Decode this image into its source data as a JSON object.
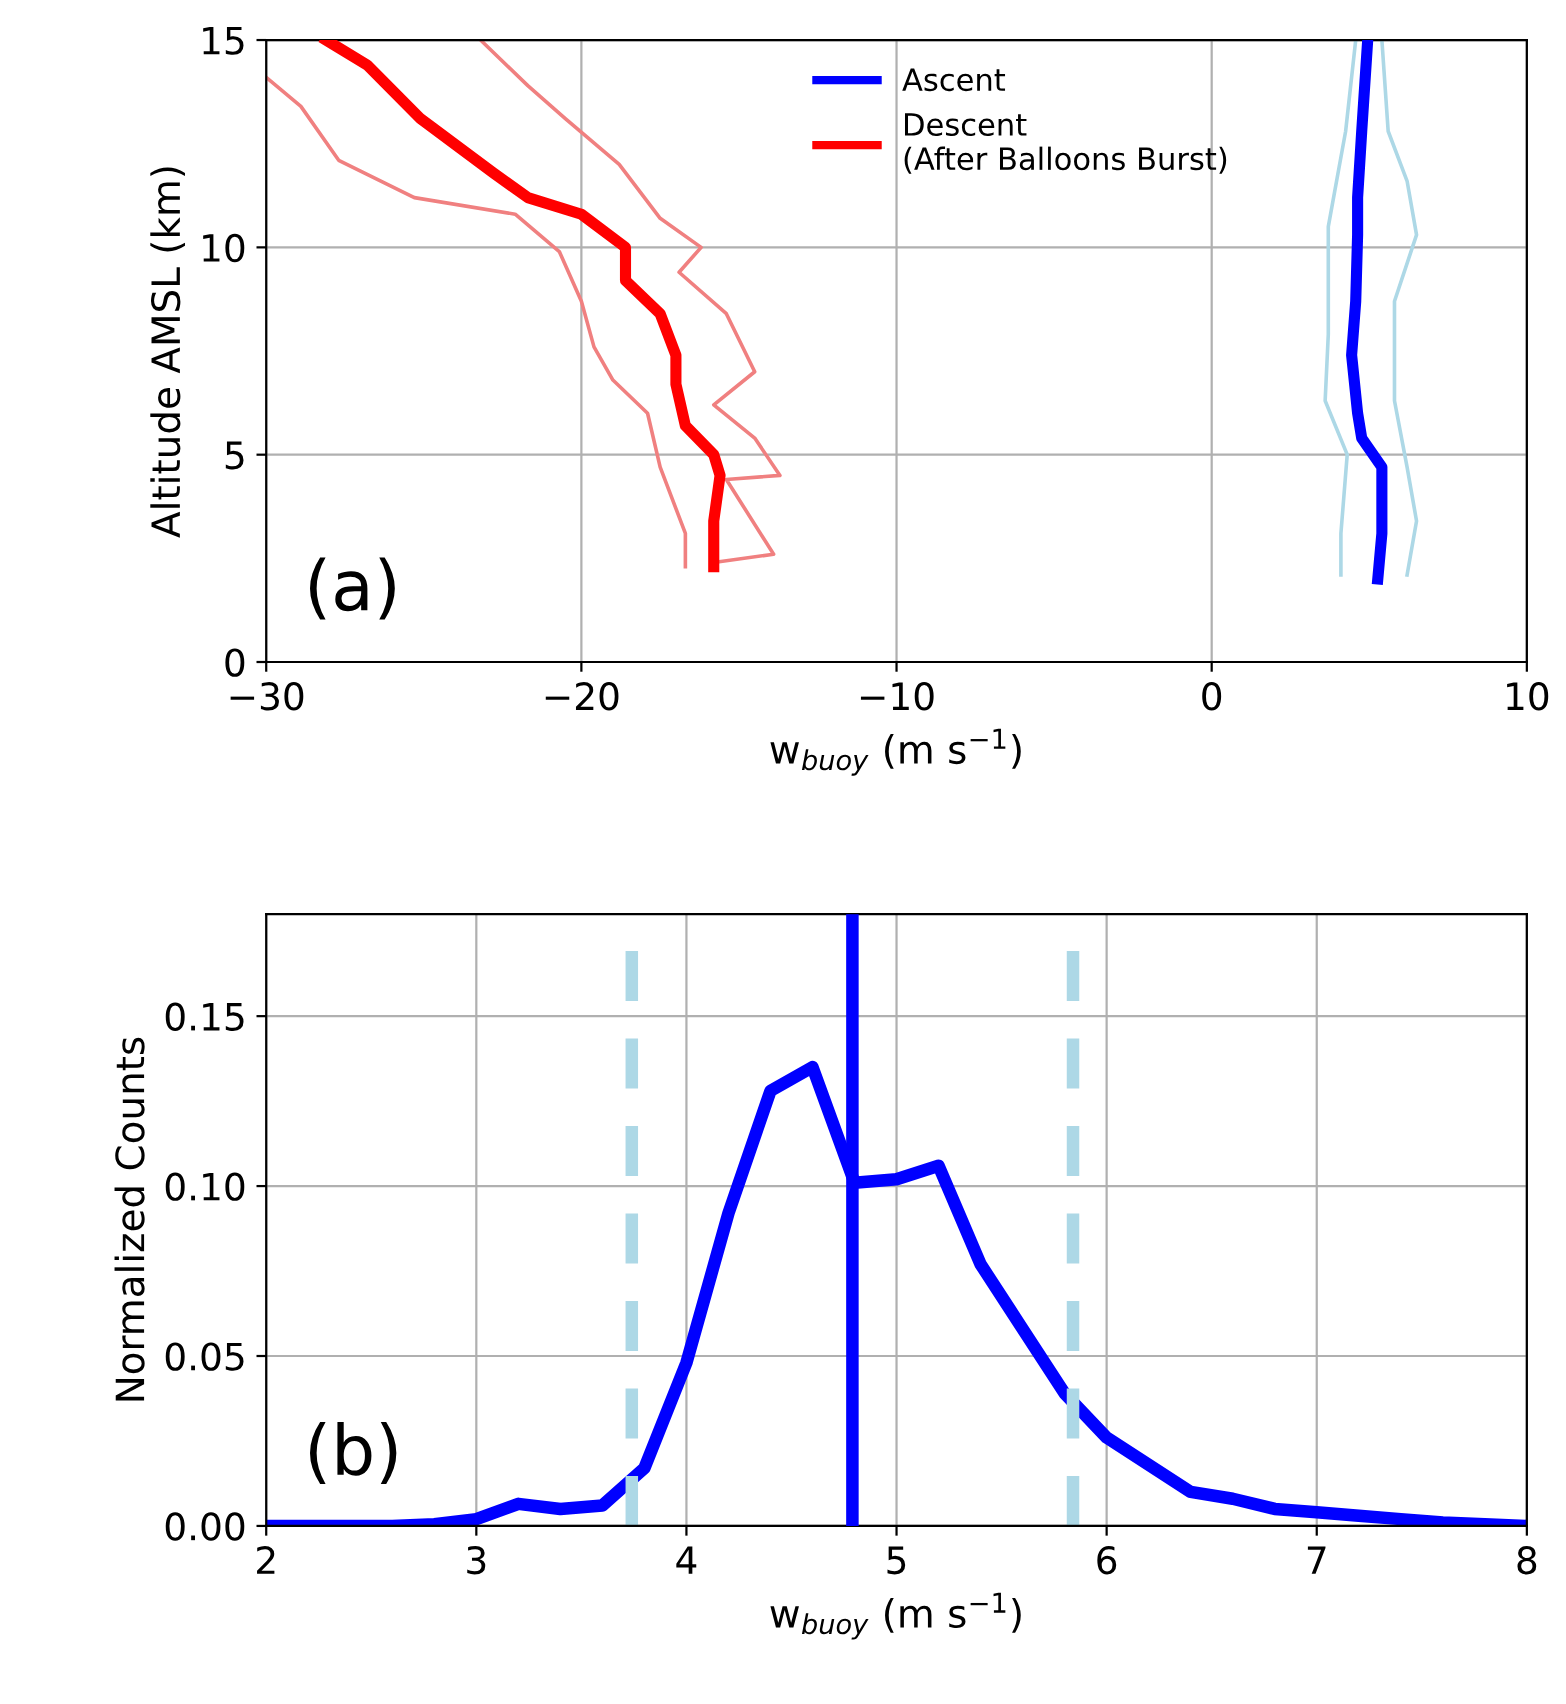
{
  "chart_data": [
    {
      "type": "line",
      "xlabel": "w$_{buoy}$ (m s$^{−1}$)",
      "ylabel": "Altitude AMSL (km)",
      "xlim": [
        -30,
        10
      ],
      "ylim": [
        0,
        15
      ],
      "xticks": [
        {
          "value": -30,
          "label": "−30"
        },
        {
          "value": -20,
          "label": "−20"
        },
        {
          "value": -10,
          "label": "−10"
        },
        0,
        10
      ],
      "yticks": [
        0,
        5,
        10,
        15
      ],
      "grid": true,
      "legend": "top",
      "annotations": [
        "(a)"
      ],
      "series": [
        {
          "color": "#add8e6",
          "x": [
            4.57,
            4.25,
            3.7,
            3.7,
            3.6,
            4.3,
            4.1,
            4.1
          ],
          "values": [
            15,
            12.8,
            10.5,
            7.9,
            6.3,
            5.0,
            3.1,
            2.1
          ]
        },
        {
          "color": "#add8e6",
          "x": [
            5.4,
            5.6,
            6.2,
            6.5,
            5.8,
            5.8,
            5.8,
            6.2,
            6.5,
            6.2
          ],
          "values": [
            15,
            12.8,
            11.6,
            10.3,
            8.7,
            7.9,
            6.3,
            4.7,
            3.4,
            2.1
          ]
        },
        {
          "color": "#f08080",
          "x": [
            -30,
            -28.9,
            -27.7,
            -25.3,
            -22.1,
            -20.7,
            -20.0,
            -19.6,
            -19.0,
            -17.9,
            -17.5,
            -16.7,
            -16.7
          ],
          "values": [
            14.1,
            13.4,
            12.1,
            11.2,
            10.8,
            9.9,
            8.7,
            7.6,
            6.8,
            6.0,
            4.7,
            3.1,
            2.3
          ]
        },
        {
          "color": "#f08080",
          "x": [
            -23.2,
            -21.7,
            -20.5,
            -18.8,
            -17.5,
            -16.2,
            -16.9,
            -15.4,
            -14.5,
            -15.8,
            -14.5,
            -13.7,
            -15.4,
            -13.9,
            -15.8
          ],
          "values": [
            15.0,
            13.9,
            13.1,
            12.0,
            10.7,
            10.0,
            9.4,
            8.4,
            7.0,
            6.2,
            5.4,
            4.5,
            4.4,
            2.6,
            2.4
          ]
        },
        {
          "name": "Ascent",
          "color": "#0000ff",
          "x": [
            4.95,
            4.76,
            4.63,
            4.63,
            4.57,
            4.44,
            4.63,
            4.76,
            5.4,
            5.4,
            5.27
          ],
          "values": [
            15,
            12.8,
            11.2,
            10.3,
            8.7,
            7.4,
            6.0,
            5.4,
            4.7,
            3.1,
            2.0
          ]
        },
        {
          "name": "Descent\n(After Balloons Burst)",
          "color": "#ff0000",
          "x": [
            -28.1,
            -26.8,
            -25.1,
            -22.8,
            -21.7,
            -20.0,
            -18.6,
            -18.6,
            -17.5,
            -17.0,
            -17.0,
            -16.7,
            -15.8,
            -15.6,
            -15.8,
            -15.8
          ],
          "values": [
            15,
            14.4,
            13.1,
            11.8,
            11.2,
            10.8,
            10.0,
            9.2,
            8.4,
            7.4,
            6.7,
            5.7,
            5.0,
            4.5,
            3.4,
            2.3
          ]
        }
      ]
    },
    {
      "type": "line",
      "xlabel": "w$_{buoy}$ (m s$^{−1}$)",
      "ylabel": "Normalized Counts",
      "xlim": [
        2,
        8
      ],
      "ylim": [
        0,
        0.18
      ],
      "xticks": [
        2,
        3,
        4,
        5,
        6,
        7,
        8
      ],
      "yticks": [
        {
          "value": 0,
          "label": "0.00"
        },
        0.05,
        {
          "value": 0.1,
          "label": "0.10"
        },
        0.15
      ],
      "grid": true,
      "annotations": [
        "(b)"
      ],
      "series": [
        {
          "color": "#0000ff",
          "x": [
            2.0,
            2.2,
            2.4,
            2.6,
            2.8,
            3.0,
            3.2,
            3.4,
            3.6,
            3.8,
            4.0,
            4.2,
            4.4,
            4.6,
            4.8,
            5.0,
            5.2,
            5.4,
            5.6,
            5.8,
            6.0,
            6.2,
            6.4,
            6.6,
            6.8,
            7.0,
            7.2,
            7.4,
            7.6,
            7.8,
            8.0
          ],
          "values": [
            0,
            0,
            0,
            0,
            0.0005,
            0.002,
            0.0065,
            0.005,
            0.006,
            0.017,
            0.048,
            0.092,
            0.128,
            0.135,
            0.101,
            0.102,
            0.106,
            0.077,
            0.058,
            0.039,
            0.026,
            0.018,
            0.01,
            0.008,
            0.005,
            0.004,
            0.003,
            0.002,
            0.001,
            0.0005,
            0
          ]
        }
      ],
      "ref_lines": [
        {
          "axis": "x",
          "value": 3.74,
          "color": "#add8e6",
          "line_style": "dashed"
        },
        {
          "axis": "x",
          "value": 5.84,
          "color": "#add8e6",
          "line_style": "dashed"
        },
        {
          "axis": "x",
          "value": 4.79,
          "color": "#0000ff",
          "line_style": "solid"
        }
      ]
    }
  ]
}
